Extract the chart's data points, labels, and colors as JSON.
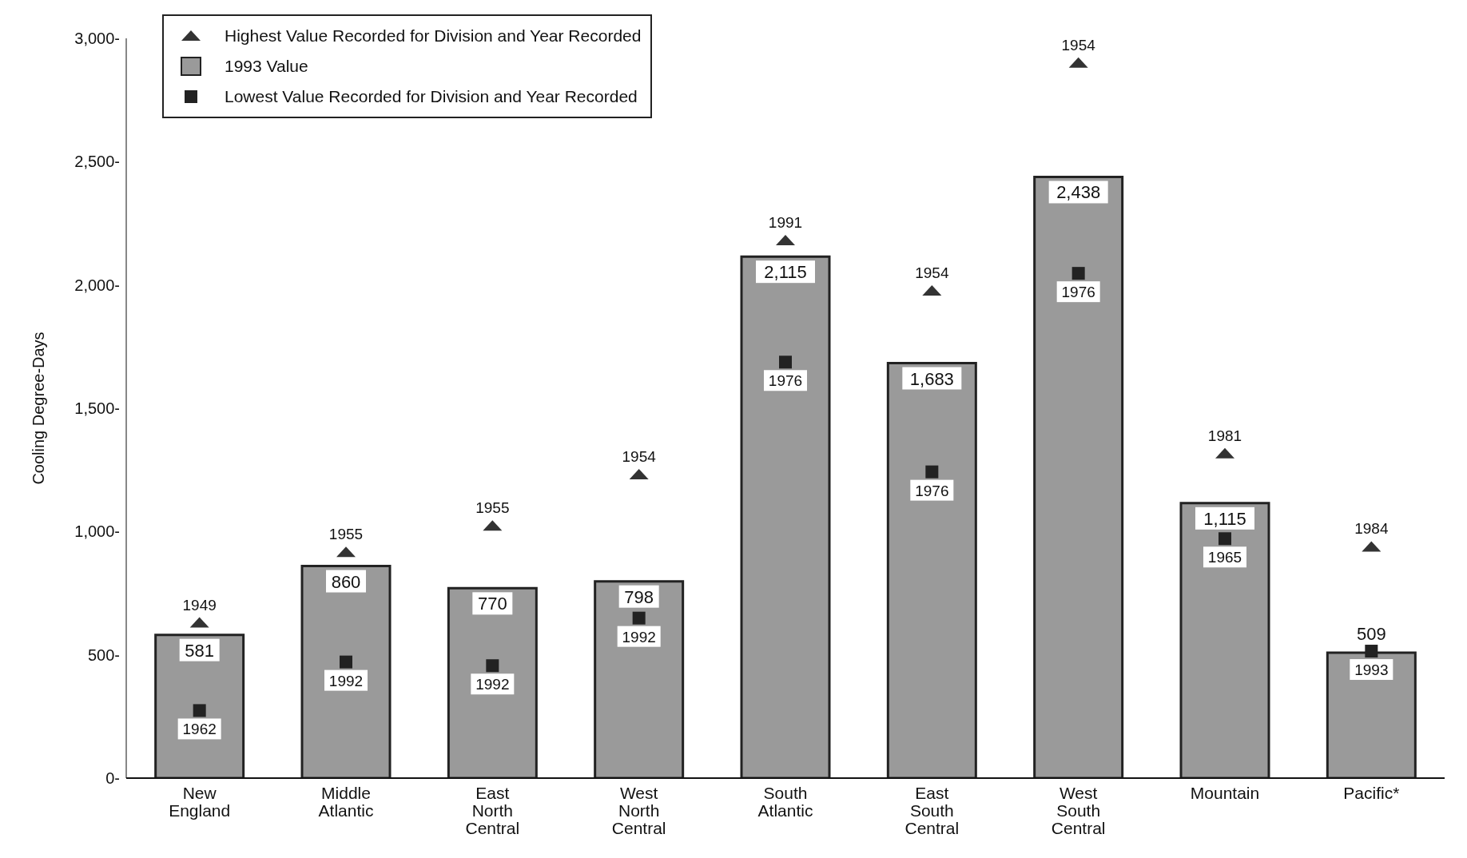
{
  "chart_data": {
    "type": "bar",
    "ylabel": "Cooling Degree-Days",
    "categories": [
      "New England",
      "Middle Atlantic",
      "East North Central",
      "West North Central",
      "South Atlantic",
      "East South Central",
      "West South Central",
      "Mountain",
      "Pacific*"
    ],
    "ylim": [
      0,
      3000
    ],
    "yticks": [
      {
        "value": 0,
        "label": "0-"
      },
      {
        "value": 500,
        "label": "500-"
      },
      {
        "value": 1000,
        "label": "1,000-"
      },
      {
        "value": 1500,
        "label": "1,500-"
      },
      {
        "value": 2000,
        "label": "2,000-"
      },
      {
        "value": 2500,
        "label": "2,500-"
      },
      {
        "value": 3000,
        "label": "3,000-"
      }
    ],
    "grid": false,
    "legend": "top left",
    "series": [
      {
        "name": "Highest Value Recorded for Division and Year Recorded",
        "type": "scatter",
        "marker": "triangle",
        "color": "#333333",
        "values": [
          630,
          916,
          1023,
          1231,
          2180,
          1976,
          2900,
          1316,
          938
        ]
      },
      {
        "name": "1993 Value",
        "color": "#9a9a9a",
        "values": [
          581,
          860,
          770,
          798,
          2115,
          1683,
          2438,
          1115,
          509
        ],
        "value_labels": [
          "581",
          "860",
          "770",
          "798",
          "2,115",
          "1,683",
          "2,438",
          "1,115",
          "509"
        ]
      },
      {
        "name": "Lowest Value Recorded for Division and Year Recorded",
        "type": "scatter",
        "marker": "square",
        "color": "#222222",
        "values": [
          274,
          471,
          456,
          649,
          1687,
          1242,
          2047,
          971,
          515
        ]
      }
    ],
    "annotations": [
      {
        "text": "1949",
        "x": "New England",
        "y": 630
      },
      {
        "text": "1955",
        "x": "Middle Atlantic",
        "y": 916
      },
      {
        "text": "1955",
        "x": "East North Central",
        "y": 1023
      },
      {
        "text": "1954",
        "x": "West North Central",
        "y": 1231
      },
      {
        "text": "1991",
        "x": "South Atlantic",
        "y": 2180
      },
      {
        "text": "1954",
        "x": "East South Central",
        "y": 1976
      },
      {
        "text": "1954",
        "x": "West South Central",
        "y": 2900
      },
      {
        "text": "1981",
        "x": "Mountain",
        "y": 1316
      },
      {
        "text": "1984",
        "x": "Pacific*",
        "y": 938
      },
      {
        "text": "1962",
        "x": "New England",
        "y": 274
      },
      {
        "text": "1992",
        "x": "Middle Atlantic",
        "y": 471
      },
      {
        "text": "1992",
        "x": "East North Central",
        "y": 456
      },
      {
        "text": "1992",
        "x": "West North Central",
        "y": 649
      },
      {
        "text": "1976",
        "x": "South Atlantic",
        "y": 1687
      },
      {
        "text": "1976",
        "x": "East South Central",
        "y": 1242
      },
      {
        "text": "1976",
        "x": "West South Central",
        "y": 2047
      },
      {
        "text": "1965",
        "x": "Mountain",
        "y": 971
      },
      {
        "text": "1993",
        "x": "Pacific*",
        "y": 515
      }
    ]
  }
}
